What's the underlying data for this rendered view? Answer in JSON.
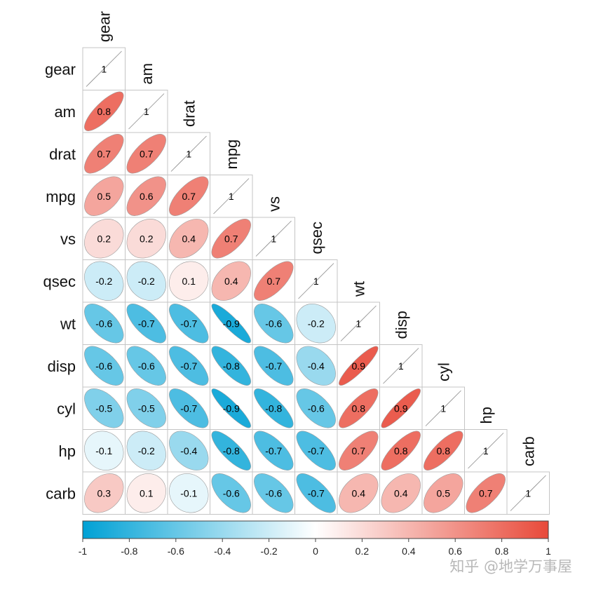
{
  "chart_data": {
    "type": "heatmap",
    "variables": [
      "gear",
      "am",
      "drat",
      "mpg",
      "vs",
      "qsec",
      "wt",
      "disp",
      "cyl",
      "hp",
      "carb"
    ],
    "matrix": [
      [
        1
      ],
      [
        0.8,
        1
      ],
      [
        0.7,
        0.7,
        1
      ],
      [
        0.5,
        0.6,
        0.7,
        1
      ],
      [
        0.2,
        0.2,
        0.4,
        0.7,
        1
      ],
      [
        -0.2,
        -0.2,
        0.1,
        0.4,
        0.7,
        1
      ],
      [
        -0.6,
        -0.7,
        -0.7,
        -0.9,
        -0.6,
        -0.2,
        1
      ],
      [
        -0.6,
        -0.6,
        -0.7,
        -0.8,
        -0.7,
        -0.4,
        0.9,
        1
      ],
      [
        -0.5,
        -0.5,
        -0.7,
        -0.9,
        -0.8,
        -0.6,
        0.8,
        0.9,
        1
      ],
      [
        -0.1,
        -0.2,
        -0.4,
        -0.8,
        -0.7,
        -0.7,
        0.7,
        0.8,
        0.8,
        1
      ],
      [
        0.3,
        0.1,
        -0.1,
        -0.6,
        -0.6,
        -0.7,
        0.4,
        0.4,
        0.5,
        0.7,
        1
      ]
    ],
    "shape": "ellipse",
    "layout": "lower-triangle",
    "colorbar": {
      "range": [
        -1,
        1
      ],
      "ticks": [
        "-1",
        "-0.8",
        "-0.6",
        "-0.4",
        "-0.2",
        "0",
        "0.2",
        "0.4",
        "0.6",
        "0.8",
        "1"
      ],
      "colors": {
        "negative": "#00a1d5",
        "neutral": "#ffffff",
        "positive": "#e84a3a"
      }
    }
  },
  "watermark": "知乎 @地学万事屋"
}
